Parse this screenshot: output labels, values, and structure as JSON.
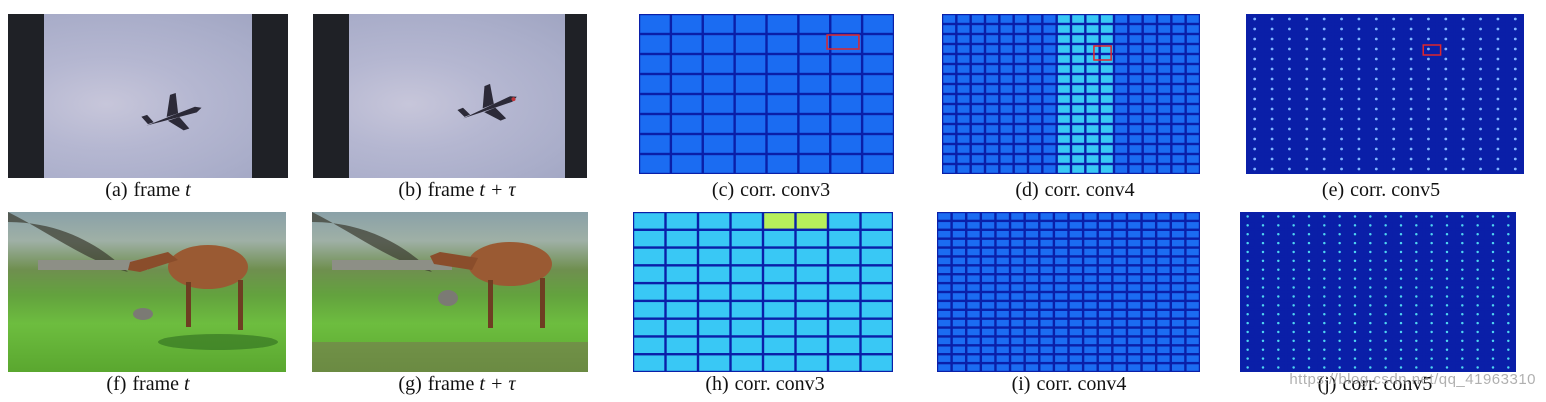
{
  "figure": {
    "rows": [
      {
        "panels": [
          {
            "label": "(a)",
            "text": "frame",
            "math": "t",
            "kind": "photo-jet"
          },
          {
            "label": "(b)",
            "text": "frame",
            "math": "t + τ",
            "kind": "photo-jet2"
          },
          {
            "label": "(c)",
            "text": "corr. conv3",
            "math": "",
            "kind": "heat"
          },
          {
            "label": "(d)",
            "text": "corr. conv4",
            "math": "",
            "kind": "heat"
          },
          {
            "label": "(e)",
            "text": "corr. conv5",
            "math": "",
            "kind": "heat"
          }
        ]
      },
      {
        "panels": [
          {
            "label": "(f)",
            "text": "frame",
            "math": "t",
            "kind": "photo-deer"
          },
          {
            "label": "(g)",
            "text": "frame",
            "math": "t + τ",
            "kind": "photo-deer2"
          },
          {
            "label": "(h)",
            "text": "corr. conv3",
            "math": "",
            "kind": "heat"
          },
          {
            "label": "(i)",
            "text": "corr. conv4",
            "math": "",
            "kind": "heat"
          },
          {
            "label": "(j)",
            "text": "corr. conv5",
            "math": "",
            "kind": "heat"
          }
        ]
      }
    ],
    "watermark": "https://blog.csdn.net/qq_41963310",
    "colors": {
      "heat_dark": "#0a1fa8",
      "heat_mid": "#1b6cf2",
      "heat_light": "#39c8f5",
      "highlight_box": "#e0262b"
    }
  }
}
